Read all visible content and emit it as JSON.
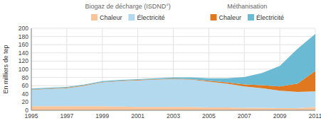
{
  "chart_data": {
    "type": "area",
    "stacked": true,
    "x": [
      1995,
      1996,
      1997,
      1998,
      1999,
      2000,
      2001,
      2002,
      2003,
      2004,
      2005,
      2006,
      2007,
      2008,
      2009,
      2010,
      2011
    ],
    "series": [
      {
        "name": "Chaleur",
        "color": "#F8C49A",
        "values": [
          10,
          10,
          10,
          10,
          10,
          9,
          8,
          8,
          8,
          8,
          7,
          7,
          6,
          6,
          5,
          5,
          8
        ]
      },
      {
        "name": "Électricité",
        "color": "#B3D9EE",
        "values": [
          40,
          42,
          44,
          50,
          58,
          62,
          65,
          67,
          68,
          67,
          63,
          58,
          52,
          48,
          43,
          40,
          38
        ]
      },
      {
        "name": "Chaleur",
        "color": "#E07820",
        "values": [
          1,
          1,
          1,
          1,
          1,
          1,
          1,
          1,
          1,
          1,
          2,
          3,
          5,
          7,
          10,
          20,
          50
        ]
      },
      {
        "name": "Électricité",
        "color": "#6BBAD4",
        "values": [
          2,
          2,
          2,
          2,
          2,
          2,
          2,
          2,
          3,
          4,
          6,
          10,
          18,
          30,
          50,
          85,
          90
        ]
      }
    ],
    "y_label": "En milliers de tep",
    "annotations": [
      "Biogaz de décharge (ISDND°)",
      "Méthanisation"
    ],
    "xlim": [
      1995,
      2011
    ],
    "xticks": [
      1995,
      1997,
      1999,
      2001,
      2003,
      2005,
      2007,
      2009,
      2011
    ],
    "ylim": [
      0,
      200
    ],
    "yticks": [
      0,
      20,
      40,
      60,
      80,
      100,
      120,
      140,
      160,
      180,
      200
    ],
    "grid": true,
    "legend": "top"
  }
}
